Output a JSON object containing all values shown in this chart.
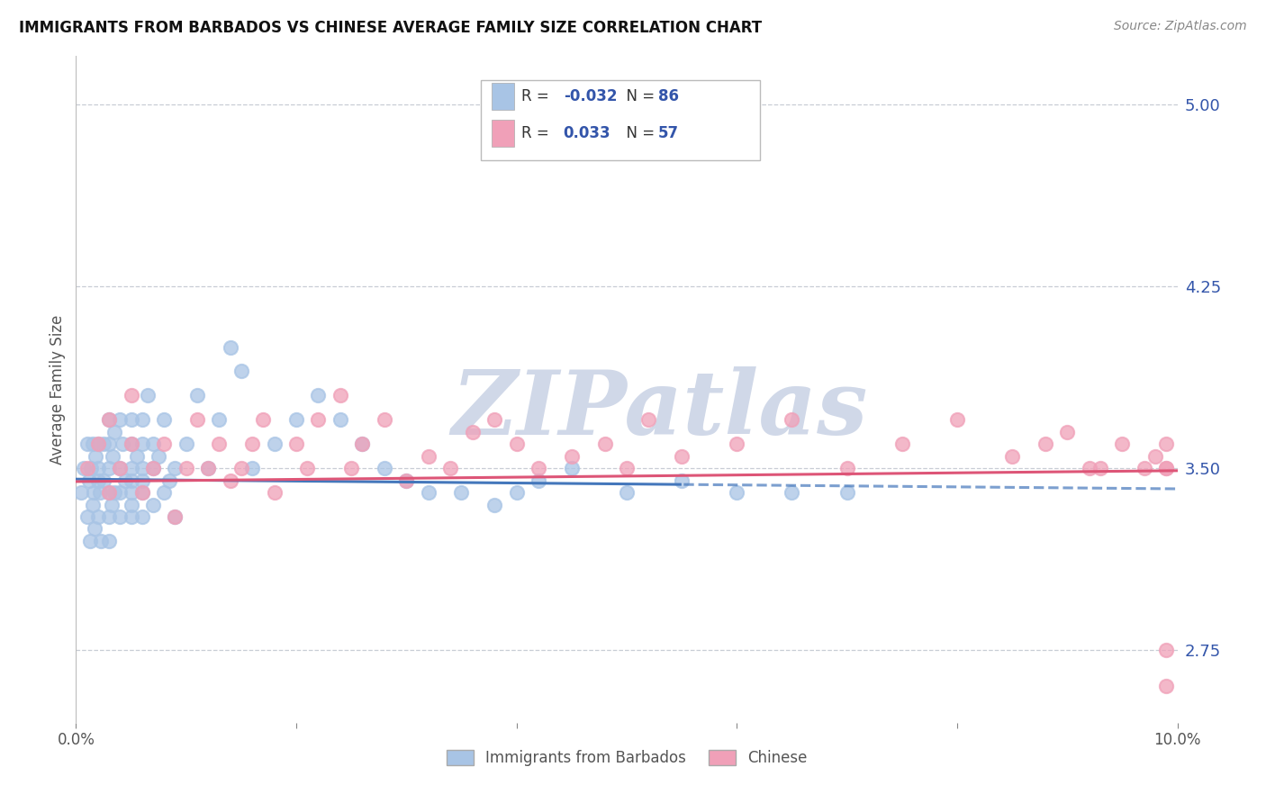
{
  "title": "IMMIGRANTS FROM BARBADOS VS CHINESE AVERAGE FAMILY SIZE CORRELATION CHART",
  "source": "Source: ZipAtlas.com",
  "ylabel": "Average Family Size",
  "xlim": [
    0.0,
    0.1
  ],
  "ylim": [
    2.45,
    5.2
  ],
  "yticks_right": [
    2.75,
    3.5,
    4.25,
    5.0
  ],
  "xticks": [
    0.0,
    0.02,
    0.04,
    0.06,
    0.08,
    0.1
  ],
  "xticklabels": [
    "0.0%",
    "",
    "",
    "",
    "",
    "10.0%"
  ],
  "series1": {
    "label": "Immigrants from Barbados",
    "R": "-0.032",
    "N": 86,
    "marker_color": "#a8c4e5",
    "line_color": "#4477bb",
    "x": [
      0.0005,
      0.0007,
      0.001,
      0.001,
      0.0012,
      0.0013,
      0.0014,
      0.0015,
      0.0015,
      0.0016,
      0.0017,
      0.0018,
      0.002,
      0.002,
      0.002,
      0.002,
      0.0022,
      0.0023,
      0.0025,
      0.0025,
      0.003,
      0.003,
      0.003,
      0.003,
      0.003,
      0.003,
      0.0032,
      0.0033,
      0.0035,
      0.0035,
      0.004,
      0.004,
      0.004,
      0.004,
      0.0042,
      0.0045,
      0.005,
      0.005,
      0.005,
      0.005,
      0.005,
      0.005,
      0.005,
      0.0055,
      0.006,
      0.006,
      0.006,
      0.006,
      0.006,
      0.006,
      0.0065,
      0.007,
      0.007,
      0.007,
      0.0075,
      0.008,
      0.008,
      0.0085,
      0.009,
      0.009,
      0.01,
      0.011,
      0.012,
      0.013,
      0.014,
      0.015,
      0.016,
      0.018,
      0.02,
      0.022,
      0.024,
      0.026,
      0.028,
      0.03,
      0.032,
      0.035,
      0.038,
      0.04,
      0.042,
      0.045,
      0.05,
      0.055,
      0.06,
      0.065,
      0.07
    ],
    "y": [
      3.4,
      3.5,
      3.3,
      3.6,
      3.45,
      3.2,
      3.5,
      3.35,
      3.6,
      3.4,
      3.25,
      3.55,
      3.3,
      3.45,
      3.5,
      3.6,
      3.4,
      3.2,
      3.45,
      3.6,
      3.3,
      3.5,
      3.7,
      3.4,
      3.2,
      3.6,
      3.35,
      3.55,
      3.4,
      3.65,
      3.5,
      3.3,
      3.7,
      3.4,
      3.6,
      3.45,
      3.35,
      3.5,
      3.6,
      3.4,
      3.3,
      3.7,
      3.45,
      3.55,
      3.6,
      3.5,
      3.4,
      3.3,
      3.7,
      3.45,
      3.8,
      3.5,
      3.35,
      3.6,
      3.55,
      3.4,
      3.7,
      3.45,
      3.5,
      3.3,
      3.6,
      3.8,
      3.5,
      3.7,
      4.0,
      3.9,
      3.5,
      3.6,
      3.7,
      3.8,
      3.7,
      3.6,
      3.5,
      3.45,
      3.4,
      3.4,
      3.35,
      3.4,
      3.45,
      3.5,
      3.4,
      3.45,
      3.4,
      3.4,
      3.4
    ]
  },
  "series2": {
    "label": "Chinese",
    "R": "0.033",
    "N": 57,
    "marker_color": "#f0a0b8",
    "line_color": "#dd5577",
    "x": [
      0.001,
      0.002,
      0.003,
      0.003,
      0.004,
      0.005,
      0.005,
      0.006,
      0.007,
      0.008,
      0.009,
      0.01,
      0.011,
      0.012,
      0.013,
      0.014,
      0.015,
      0.016,
      0.017,
      0.018,
      0.02,
      0.021,
      0.022,
      0.024,
      0.025,
      0.026,
      0.028,
      0.03,
      0.032,
      0.034,
      0.036,
      0.038,
      0.04,
      0.042,
      0.045,
      0.048,
      0.05,
      0.052,
      0.055,
      0.06,
      0.065,
      0.07,
      0.075,
      0.08,
      0.085,
      0.088,
      0.09,
      0.092,
      0.093,
      0.095,
      0.097,
      0.098,
      0.099,
      0.099,
      0.099,
      0.099,
      0.099
    ],
    "y": [
      3.5,
      3.6,
      3.4,
      3.7,
      3.5,
      3.6,
      3.8,
      3.4,
      3.5,
      3.6,
      3.3,
      3.5,
      3.7,
      3.5,
      3.6,
      3.45,
      3.5,
      3.6,
      3.7,
      3.4,
      3.6,
      3.5,
      3.7,
      3.8,
      3.5,
      3.6,
      3.7,
      3.45,
      3.55,
      3.5,
      3.65,
      3.7,
      3.6,
      3.5,
      3.55,
      3.6,
      3.5,
      3.7,
      3.55,
      3.6,
      3.7,
      3.5,
      3.6,
      3.7,
      3.55,
      3.6,
      3.65,
      3.5,
      3.5,
      3.6,
      3.5,
      3.55,
      3.6,
      2.75,
      2.6,
      3.5,
      3.5
    ]
  },
  "watermark_text": "ZIPatlas",
  "watermark_color": "#d0d8e8",
  "background_color": "#ffffff",
  "grid_color": "#c8cdd5",
  "legend_R_color": "#3355aa",
  "title_color": "#111111",
  "axis_label_color": "#555555",
  "right_axis_color": "#3355aa"
}
